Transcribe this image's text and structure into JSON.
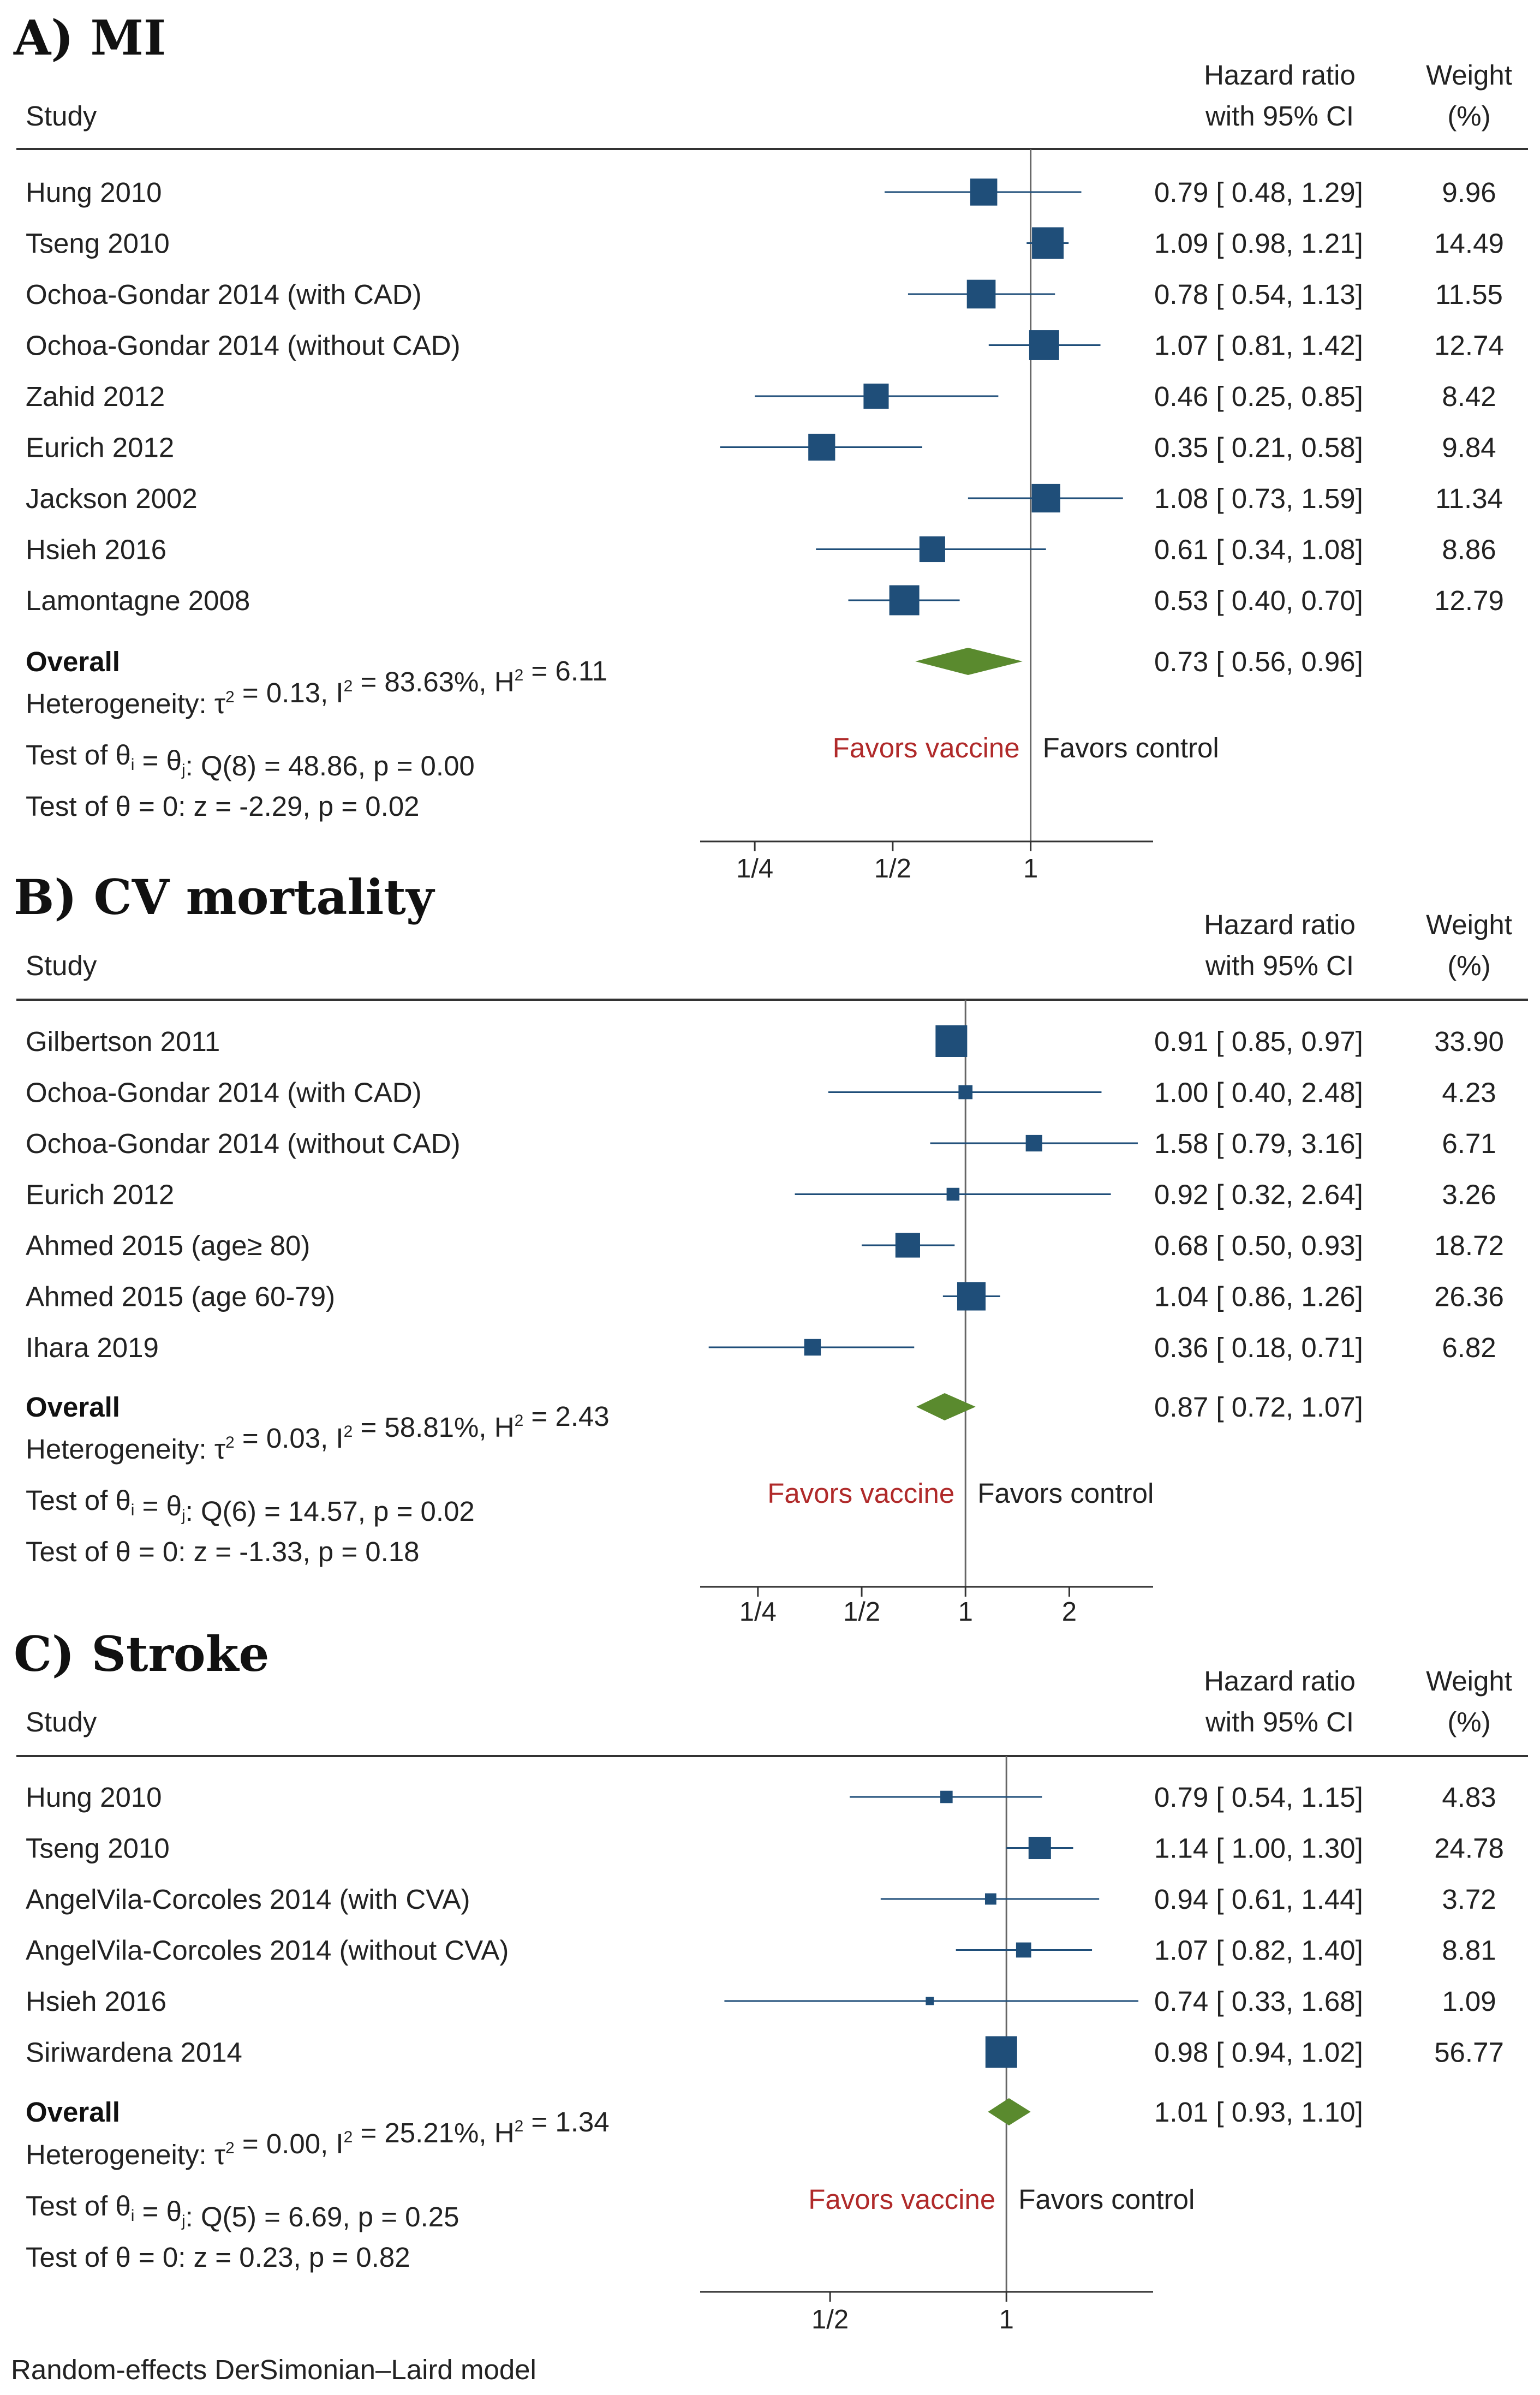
{
  "chart_data": [
    {
      "type": "forest",
      "title": "A) MI",
      "header": {
        "study": "Study",
        "effect_line1": "Hazard ratio",
        "effect_line2": "with 95% CI",
        "weight_line1": "Weight",
        "weight_line2": "(%)"
      },
      "xscale": "log2",
      "xlim": [
        0.19,
        1.85
      ],
      "ticks": [
        0.25,
        0.5,
        1
      ],
      "tick_labels": [
        "1/4",
        "1/2",
        "1"
      ],
      "favors_left": "Favors vaccine",
      "favors_right": "Favors control",
      "studies": [
        {
          "label": "Hung 2010",
          "hr": 0.79,
          "lo": 0.48,
          "hi": 1.29,
          "hr_text": "0.79 [ 0.48,  1.29]",
          "weight": 9.96,
          "weight_text": "9.96"
        },
        {
          "label": "Tseng 2010",
          "hr": 1.09,
          "lo": 0.98,
          "hi": 1.21,
          "hr_text": "1.09 [ 0.98,  1.21]",
          "weight": 14.49,
          "weight_text": "14.49"
        },
        {
          "label": "Ochoa-Gondar 2014 (with CAD)",
          "hr": 0.78,
          "lo": 0.54,
          "hi": 1.13,
          "hr_text": "0.78 [ 0.54,  1.13]",
          "weight": 11.55,
          "weight_text": "11.55"
        },
        {
          "label": "Ochoa-Gondar 2014 (without CAD)",
          "hr": 1.07,
          "lo": 0.81,
          "hi": 1.42,
          "hr_text": "1.07 [ 0.81,  1.42]",
          "weight": 12.74,
          "weight_text": "12.74"
        },
        {
          "label": "Zahid 2012",
          "hr": 0.46,
          "lo": 0.25,
          "hi": 0.85,
          "hr_text": "0.46 [ 0.25,  0.85]",
          "weight": 8.42,
          "weight_text": "8.42"
        },
        {
          "label": "Eurich 2012",
          "hr": 0.35,
          "lo": 0.21,
          "hi": 0.58,
          "hr_text": "0.35 [ 0.21,  0.58]",
          "weight": 9.84,
          "weight_text": "9.84"
        },
        {
          "label": "Jackson 2002",
          "hr": 1.08,
          "lo": 0.73,
          "hi": 1.59,
          "hr_text": "1.08 [ 0.73,  1.59]",
          "weight": 11.34,
          "weight_text": "11.34"
        },
        {
          "label": "Hsieh 2016",
          "hr": 0.61,
          "lo": 0.34,
          "hi": 1.08,
          "hr_text": "0.61 [ 0.34,  1.08]",
          "weight": 8.86,
          "weight_text": "8.86"
        },
        {
          "label": "Lamontagne 2008",
          "hr": 0.53,
          "lo": 0.4,
          "hi": 0.7,
          "hr_text": "0.53 [ 0.40,  0.70]",
          "weight": 12.79,
          "weight_text": "12.79"
        }
      ],
      "overall": {
        "label": "Overall",
        "hr": 0.73,
        "lo": 0.56,
        "hi": 0.96,
        "hr_text": "0.73 [ 0.56,  0.96]"
      },
      "stats": [
        {
          "a": "Heterogeneity: τ",
          "s1": "2",
          "b": " = 0.13, I",
          "s2": "2",
          "c": " = 83.63%, H",
          "s3": "2",
          "d": " = 6.11"
        },
        {
          "a": "Test of θ",
          "s1": "i",
          "b": " = θ",
          "s2": "j",
          "c": ": Q(8) = 48.86, p = 0.00",
          "s3": "",
          "d": ""
        },
        {
          "a": "Test of θ = 0: z = -2.29, p = 0.02",
          "s1": "",
          "b": "",
          "s2": "",
          "c": "",
          "s3": "",
          "d": ""
        }
      ]
    },
    {
      "type": "forest",
      "title": "B) CV mortality",
      "header": {
        "study": "Study",
        "effect_line1": "Hazard ratio",
        "effect_line2": "with 95% CI",
        "weight_line1": "Weight",
        "weight_line2": "(%)"
      },
      "xscale": "log2",
      "xlim": [
        0.17,
        3.5
      ],
      "ticks": [
        0.25,
        0.5,
        1,
        2
      ],
      "tick_labels": [
        "1/4",
        "1/2",
        "1",
        "2"
      ],
      "favors_left": "Favors vaccine",
      "favors_right": "Favors control",
      "studies": [
        {
          "label": "Gilbertson 2011",
          "hr": 0.91,
          "lo": 0.85,
          "hi": 0.97,
          "hr_text": "0.91 [ 0.85,  0.97]",
          "weight": 33.9,
          "weight_text": "33.90"
        },
        {
          "label": "Ochoa-Gondar 2014 (with CAD)",
          "hr": 1.0,
          "lo": 0.4,
          "hi": 2.48,
          "hr_text": "1.00 [ 0.40,  2.48]",
          "weight": 4.23,
          "weight_text": "4.23"
        },
        {
          "label": "Ochoa-Gondar 2014 (without CAD)",
          "hr": 1.58,
          "lo": 0.79,
          "hi": 3.16,
          "hr_text": "1.58 [ 0.79,  3.16]",
          "weight": 6.71,
          "weight_text": "6.71"
        },
        {
          "label": "Eurich 2012",
          "hr": 0.92,
          "lo": 0.32,
          "hi": 2.64,
          "hr_text": "0.92 [ 0.32,  2.64]",
          "weight": 3.26,
          "weight_text": "3.26"
        },
        {
          "label": "Ahmed 2015 (age≥ 80)",
          "hr": 0.68,
          "lo": 0.5,
          "hi": 0.93,
          "hr_text": "0.68 [ 0.50,  0.93]",
          "weight": 18.72,
          "weight_text": "18.72"
        },
        {
          "label": "Ahmed 2015 (age 60-79)",
          "hr": 1.04,
          "lo": 0.86,
          "hi": 1.26,
          "hr_text": "1.04 [ 0.86,  1.26]",
          "weight": 26.36,
          "weight_text": "26.36"
        },
        {
          "label": "Ihara 2019",
          "hr": 0.36,
          "lo": 0.18,
          "hi": 0.71,
          "hr_text": "0.36 [ 0.18,  0.71]",
          "weight": 6.82,
          "weight_text": "6.82"
        }
      ],
      "overall": {
        "label": "Overall",
        "hr": 0.87,
        "lo": 0.72,
        "hi": 1.07,
        "hr_text": "0.87 [ 0.72,  1.07]"
      },
      "stats": [
        {
          "a": "Heterogeneity: τ",
          "s1": "2",
          "b": " = 0.03, I",
          "s2": "2",
          "c": " = 58.81%, H",
          "s3": "2",
          "d": " = 2.43"
        },
        {
          "a": "Test of θ",
          "s1": "i",
          "b": " = θ",
          "s2": "j",
          "c": ": Q(6) = 14.57, p = 0.02",
          "s3": "",
          "d": ""
        },
        {
          "a": "Test of θ = 0: z = -1.33, p = 0.18",
          "s1": "",
          "b": "",
          "s2": "",
          "c": "",
          "s3": "",
          "d": ""
        }
      ]
    },
    {
      "type": "forest",
      "title": "C) Stroke",
      "header": {
        "study": "Study",
        "effect_line1": "Hazard ratio",
        "effect_line2": "with 95% CI",
        "weight_line1": "Weight",
        "weight_line2": "(%)"
      },
      "xscale": "log2",
      "xlim": [
        0.3,
        1.78
      ],
      "ticks": [
        0.5,
        1
      ],
      "tick_labels": [
        "1/2",
        "1"
      ],
      "favors_left": "Favors vaccine",
      "favors_right": "Favors control",
      "studies": [
        {
          "label": "Hung 2010",
          "hr": 0.79,
          "lo": 0.54,
          "hi": 1.15,
          "hr_text": "0.79 [ 0.54,  1.15]",
          "weight": 4.83,
          "weight_text": "4.83"
        },
        {
          "label": "Tseng 2010",
          "hr": 1.14,
          "lo": 1.0,
          "hi": 1.3,
          "hr_text": "1.14 [ 1.00,  1.30]",
          "weight": 24.78,
          "weight_text": "24.78"
        },
        {
          "label": "AngelVila-Corcoles 2014 (with CVA)",
          "hr": 0.94,
          "lo": 0.61,
          "hi": 1.44,
          "hr_text": "0.94 [ 0.61,  1.44]",
          "weight": 3.72,
          "weight_text": "3.72"
        },
        {
          "label": "AngelVila-Corcoles 2014 (without CVA)",
          "hr": 1.07,
          "lo": 0.82,
          "hi": 1.4,
          "hr_text": "1.07 [ 0.82,  1.40]",
          "weight": 8.81,
          "weight_text": "8.81"
        },
        {
          "label": "Hsieh 2016",
          "hr": 0.74,
          "lo": 0.33,
          "hi": 1.68,
          "hr_text": "0.74 [ 0.33,  1.68]",
          "weight": 1.09,
          "weight_text": "1.09"
        },
        {
          "label": "Siriwardena 2014",
          "hr": 0.98,
          "lo": 0.94,
          "hi": 1.02,
          "hr_text": "0.98 [ 0.94,  1.02]",
          "weight": 56.77,
          "weight_text": "56.77"
        }
      ],
      "overall": {
        "label": "Overall",
        "hr": 1.01,
        "lo": 0.93,
        "hi": 1.1,
        "hr_text": "1.01 [ 0.93,  1.10]"
      },
      "stats": [
        {
          "a": "Heterogeneity: τ",
          "s1": "2",
          "b": " = 0.00, I",
          "s2": "2",
          "c": " = 25.21%, H",
          "s3": "2",
          "d": " = 1.34"
        },
        {
          "a": "Test of θ",
          "s1": "i",
          "b": " = θ",
          "s2": "j",
          "c": ": Q(5) = 6.69, p = 0.25",
          "s3": "",
          "d": ""
        },
        {
          "a": "Test of θ = 0: z = 0.23, p = 0.82",
          "s1": "",
          "b": "",
          "s2": "",
          "c": "",
          "s3": "",
          "d": ""
        }
      ]
    }
  ],
  "footnote": "Random-effects DerSimonian–Laird model",
  "colors": {
    "marker": "#1f4e79",
    "ci_line": "#1f4e79",
    "diamond": "#5a8a2e",
    "favors_vaccine": "#b02a2a",
    "text": "#222222",
    "rule": "#333333"
  }
}
